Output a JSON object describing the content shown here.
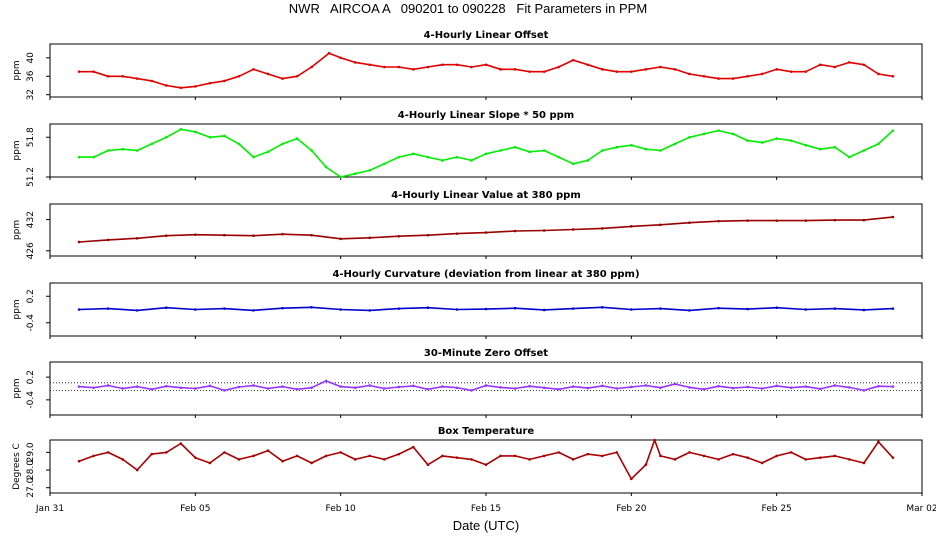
{
  "title": "NWR   AIRCOA A   090201 to 090228   Fit Parameters in PPM",
  "chart_data": [
    {
      "type": "line",
      "title": "4-Hourly Linear Offset",
      "ylabel": "ppm",
      "yticks": [
        "32",
        "36",
        "40"
      ],
      "ylim": [
        31.5,
        43
      ],
      "series": [
        {
          "color": "#e00000",
          "style": "line",
          "x": [
            1.0,
            1.5,
            2.0,
            2.5,
            3.0,
            3.5,
            4.0,
            4.5,
            5.0,
            5.5,
            6.0,
            6.5,
            7.0,
            7.5,
            8.0,
            8.5,
            9.0,
            9.6,
            10.0,
            10.5,
            11.0,
            11.5,
            12.0,
            12.5,
            13.0,
            13.5,
            14.0,
            14.5,
            15.0,
            15.5,
            16.0,
            16.5,
            17.0,
            17.5,
            18.0,
            18.5,
            19.0,
            19.5,
            20.0,
            20.5,
            21.0,
            21.5,
            22.0,
            22.5,
            23.0,
            23.5,
            24.0,
            24.5,
            25.0,
            25.5,
            26.0,
            26.5,
            27.0,
            27.5,
            28.0,
            28.5,
            29.0
          ],
          "y": [
            37.0,
            37.0,
            36.0,
            36.0,
            35.5,
            35.0,
            34.0,
            33.5,
            33.8,
            34.5,
            35.0,
            36.0,
            37.5,
            36.5,
            35.5,
            36.0,
            38.0,
            41.0,
            40.0,
            39.0,
            38.5,
            38.0,
            38.0,
            37.5,
            38.0,
            38.5,
            38.5,
            38.0,
            38.5,
            37.5,
            37.5,
            37.0,
            37.0,
            38.0,
            39.5,
            38.5,
            37.5,
            37.0,
            37.0,
            37.5,
            38.0,
            37.5,
            36.5,
            36.0,
            35.5,
            35.5,
            36.0,
            36.5,
            37.5,
            37.0,
            37.0,
            38.5,
            38.0,
            39.0,
            38.5,
            36.5,
            36.0
          ]
        }
      ]
    },
    {
      "type": "line",
      "title": "4-Hourly Linear Slope * 50 ppm",
      "ylabel": "ppm",
      "yticks": [
        "51.2",
        "51.8"
      ],
      "ylim": [
        51.2,
        52.0
      ],
      "series": [
        {
          "color": "#00ee00",
          "style": "line",
          "x": [
            1.0,
            1.5,
            2.0,
            2.5,
            3.0,
            3.5,
            4.0,
            4.5,
            5.0,
            5.5,
            6.0,
            6.5,
            7.0,
            7.5,
            8.0,
            8.5,
            9.0,
            9.5,
            10.0,
            10.5,
            11.0,
            11.5,
            12.0,
            12.5,
            13.0,
            13.5,
            14.0,
            14.5,
            15.0,
            15.5,
            16.0,
            16.5,
            17.0,
            17.5,
            18.0,
            18.5,
            19.0,
            19.5,
            20.0,
            20.5,
            21.0,
            21.5,
            22.0,
            22.5,
            23.0,
            23.5,
            24.0,
            24.5,
            25.0,
            25.5,
            26.0,
            26.5,
            27.0,
            27.5,
            28.0,
            28.5,
            29.0
          ],
          "y": [
            51.5,
            51.5,
            51.6,
            51.62,
            51.6,
            51.7,
            51.8,
            51.92,
            51.88,
            51.8,
            51.82,
            51.7,
            51.5,
            51.58,
            51.7,
            51.78,
            51.6,
            51.35,
            51.2,
            51.25,
            51.3,
            51.4,
            51.5,
            51.55,
            51.5,
            51.45,
            51.5,
            51.45,
            51.55,
            51.6,
            51.65,
            51.58,
            51.6,
            51.5,
            51.4,
            51.45,
            51.6,
            51.65,
            51.68,
            51.62,
            51.6,
            51.7,
            51.8,
            51.85,
            51.9,
            51.85,
            51.75,
            51.72,
            51.78,
            51.75,
            51.68,
            51.62,
            51.65,
            51.5,
            51.6,
            51.7,
            51.9
          ]
        }
      ]
    },
    {
      "type": "line",
      "title": "4-Hourly Linear Value at 380 ppm",
      "ylabel": "ppm",
      "yticks": [
        "426",
        "432"
      ],
      "ylim": [
        425,
        435
      ],
      "series": [
        {
          "color": "#990000",
          "style": "line",
          "x": [
            1.0,
            2.0,
            3.0,
            4.0,
            5.0,
            6.0,
            7.0,
            8.0,
            9.0,
            10.0,
            11.0,
            12.0,
            13.0,
            14.0,
            15.0,
            16.0,
            17.0,
            18.0,
            19.0,
            20.0,
            21.0,
            22.0,
            23.0,
            24.0,
            25.0,
            26.0,
            27.0,
            28.0,
            29.0
          ],
          "y": [
            427.7,
            428.1,
            428.4,
            428.9,
            429.1,
            429.0,
            428.9,
            429.2,
            429.0,
            428.3,
            428.5,
            428.8,
            429.0,
            429.3,
            429.5,
            429.8,
            429.9,
            430.1,
            430.3,
            430.7,
            431.0,
            431.4,
            431.7,
            431.8,
            431.8,
            431.8,
            431.9,
            431.9,
            432.5
          ]
        }
      ]
    },
    {
      "type": "line",
      "title": "4-Hourly Curvature (deviation from linear at 380 ppm)",
      "ylabel": "ppm",
      "yticks": [
        "-0.4",
        "0.2"
      ],
      "ylim": [
        -0.7,
        0.5
      ],
      "series": [
        {
          "color": "#0000cc",
          "style": "line",
          "x": [
            1.0,
            2.0,
            3.0,
            4.0,
            5.0,
            6.0,
            7.0,
            8.0,
            9.0,
            10.0,
            11.0,
            12.0,
            13.0,
            14.0,
            15.0,
            16.0,
            17.0,
            18.0,
            19.0,
            20.0,
            21.0,
            22.0,
            23.0,
            24.0,
            25.0,
            26.0,
            27.0,
            28.0,
            29.0
          ],
          "y": [
            -0.1,
            -0.08,
            -0.12,
            -0.06,
            -0.1,
            -0.08,
            -0.12,
            -0.07,
            -0.05,
            -0.1,
            -0.12,
            -0.08,
            -0.06,
            -0.1,
            -0.09,
            -0.07,
            -0.11,
            -0.08,
            -0.05,
            -0.1,
            -0.08,
            -0.12,
            -0.07,
            -0.09,
            -0.06,
            -0.1,
            -0.08,
            -0.11,
            -0.08
          ]
        }
      ]
    },
    {
      "type": "line",
      "title": "30-Minute Zero Offset",
      "ylabel": "ppm",
      "yticks": [
        "-0.4",
        "0.2"
      ],
      "ylim": [
        -0.8,
        0.6
      ],
      "reference_lines": [
        0.05,
        -0.15
      ],
      "series": [
        {
          "color": "#9933ff",
          "style": "line",
          "x": [
            1.0,
            1.5,
            2.0,
            2.5,
            3.0,
            3.5,
            4.0,
            4.5,
            5.0,
            5.5,
            6.0,
            6.5,
            7.0,
            7.5,
            8.0,
            8.5,
            9.0,
            9.5,
            10.0,
            10.5,
            11.0,
            11.5,
            12.0,
            12.5,
            13.0,
            13.5,
            14.0,
            14.5,
            15.0,
            15.5,
            16.0,
            16.5,
            17.0,
            17.5,
            18.0,
            18.5,
            19.0,
            19.5,
            20.0,
            20.5,
            21.0,
            21.5,
            22.0,
            22.5,
            23.0,
            23.5,
            24.0,
            24.5,
            25.0,
            25.5,
            26.0,
            26.5,
            27.0,
            27.5,
            28.0,
            28.5,
            29.0
          ],
          "y": [
            -0.05,
            -0.08,
            -0.02,
            -0.1,
            -0.05,
            -0.12,
            -0.04,
            -0.08,
            -0.1,
            -0.03,
            -0.15,
            -0.06,
            -0.02,
            -0.1,
            -0.05,
            -0.12,
            -0.08,
            0.1,
            -0.05,
            -0.08,
            -0.02,
            -0.1,
            -0.06,
            -0.03,
            -0.12,
            -0.05,
            -0.08,
            -0.15,
            -0.02,
            -0.07,
            -0.1,
            -0.04,
            -0.08,
            -0.12,
            -0.05,
            -0.09,
            -0.03,
            -0.1,
            -0.06,
            -0.02,
            -0.08,
            0.02,
            -0.07,
            -0.12,
            -0.04,
            -0.09,
            -0.06,
            -0.1,
            -0.03,
            -0.08,
            -0.05,
            -0.11,
            -0.02,
            -0.07,
            -0.15,
            -0.04,
            -0.05
          ]
        }
      ]
    },
    {
      "type": "line",
      "title": "Box Temperature",
      "ylabel": "Degrees C",
      "yticks": [
        "27.0",
        "28.0",
        "29.0"
      ],
      "ylim": [
        26.7,
        29.7
      ],
      "series": [
        {
          "color": "#aa0000",
          "style": "line",
          "x": [
            1.0,
            1.5,
            2.0,
            2.5,
            3.0,
            3.5,
            4.0,
            4.5,
            5.0,
            5.5,
            6.0,
            6.5,
            7.0,
            7.5,
            8.0,
            8.5,
            9.0,
            9.5,
            10.0,
            10.5,
            11.0,
            11.5,
            12.0,
            12.5,
            13.0,
            13.5,
            14.0,
            14.5,
            15.0,
            15.5,
            16.0,
            16.5,
            17.0,
            17.5,
            18.0,
            18.5,
            19.0,
            19.5,
            20.0,
            20.5,
            20.8,
            21.0,
            21.5,
            22.0,
            22.5,
            23.0,
            23.5,
            24.0,
            24.5,
            25.0,
            25.5,
            26.0,
            26.5,
            27.0,
            27.5,
            28.0,
            28.5,
            29.0
          ],
          "y": [
            28.5,
            28.8,
            29.0,
            28.6,
            28.0,
            28.9,
            29.0,
            29.5,
            28.7,
            28.4,
            29.0,
            28.6,
            28.8,
            29.1,
            28.5,
            28.8,
            28.4,
            28.8,
            29.0,
            28.6,
            28.8,
            28.6,
            28.9,
            29.3,
            28.3,
            28.8,
            28.7,
            28.6,
            28.3,
            28.8,
            28.8,
            28.6,
            28.8,
            29.0,
            28.6,
            28.9,
            28.8,
            29.0,
            27.5,
            28.3,
            29.7,
            28.8,
            28.6,
            29.0,
            28.8,
            28.6,
            28.9,
            28.7,
            28.4,
            28.8,
            29.0,
            28.6,
            28.7,
            28.8,
            28.6,
            28.4,
            29.6,
            28.7
          ]
        }
      ]
    }
  ],
  "x_axis": {
    "label": "Date (UTC)",
    "ticks": [
      {
        "label": "Jan 31",
        "value": 0
      },
      {
        "label": "Feb 05",
        "value": 5
      },
      {
        "label": "Feb 10",
        "value": 10
      },
      {
        "label": "Feb 15",
        "value": 15
      },
      {
        "label": "Feb 20",
        "value": 20
      },
      {
        "label": "Feb 25",
        "value": 25
      },
      {
        "label": "Mar 02",
        "value": 30
      }
    ]
  }
}
